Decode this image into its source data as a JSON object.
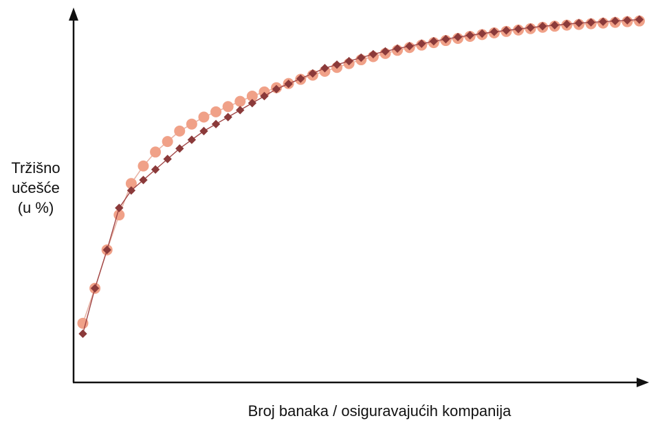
{
  "chart_data": {
    "type": "line",
    "title": "",
    "xlabel": "Broj banaka / osiguravajućih kompanija",
    "ylabel_lines": [
      "Tržišno",
      "učešće",
      "(u %)"
    ],
    "x_ticks": [],
    "y_ticks": [],
    "grid": false,
    "legend": "none",
    "xlim": [
      0,
      47
    ],
    "ylim": [
      0,
      100
    ],
    "series": [
      {
        "key": "circles",
        "marker": "circle",
        "color": "#f0a188",
        "x": [
          1,
          2,
          3,
          4,
          5,
          6,
          7,
          8,
          9,
          10,
          11,
          12,
          13,
          14,
          15,
          16,
          17,
          18,
          19,
          20,
          21,
          22,
          23,
          24,
          25,
          26,
          27,
          28,
          29,
          30,
          31,
          32,
          33,
          34,
          35,
          36,
          37,
          38,
          39,
          40,
          41,
          42,
          43,
          44,
          45,
          46,
          47
        ],
        "values": [
          13,
          23,
          34,
          44,
          53,
          58,
          62,
          65,
          68,
          70,
          72,
          73.5,
          75,
          76.5,
          78,
          79.2,
          80.4,
          81.6,
          82.8,
          84,
          85.1,
          86.2,
          87.3,
          88.4,
          89.3,
          90.2,
          91.1,
          91.9,
          92.6,
          93.3,
          93.9,
          94.5,
          95.1,
          95.6,
          96.1,
          96.5,
          96.9,
          97.3,
          97.7,
          98,
          98.3,
          98.5,
          98.7,
          98.9,
          99.1,
          99.3,
          99.5
        ]
      },
      {
        "key": "diamonds",
        "marker": "diamond",
        "color": "#8b3a3a",
        "x": [
          1,
          2,
          3,
          4,
          5,
          6,
          7,
          8,
          9,
          10,
          11,
          12,
          13,
          14,
          15,
          16,
          17,
          18,
          19,
          20,
          21,
          22,
          23,
          24,
          25,
          26,
          27,
          28,
          29,
          30,
          31,
          32,
          33,
          34,
          35,
          36,
          37,
          38,
          39,
          40,
          41,
          42,
          43,
          44,
          45,
          46,
          47
        ],
        "values": [
          10,
          23,
          34,
          46,
          51,
          54,
          57,
          60,
          63,
          65.5,
          68,
          70,
          72,
          74,
          76,
          78,
          80,
          81.5,
          83,
          84.5,
          86,
          87,
          88,
          89,
          90,
          90.8,
          91.6,
          92.3,
          93,
          93.7,
          94.3,
          94.9,
          95.4,
          95.9,
          96.4,
          96.8,
          97.2,
          97.6,
          98,
          98.3,
          98.6,
          98.9,
          99.1,
          99.3,
          99.5,
          99.7,
          99.9
        ]
      }
    ]
  },
  "colors": {
    "axis": "#111111",
    "circle_fill": "#f0a188",
    "circle_line": "#e8b3a5",
    "diamond_fill": "#8b3a3a",
    "diamond_line": "#a04545"
  }
}
